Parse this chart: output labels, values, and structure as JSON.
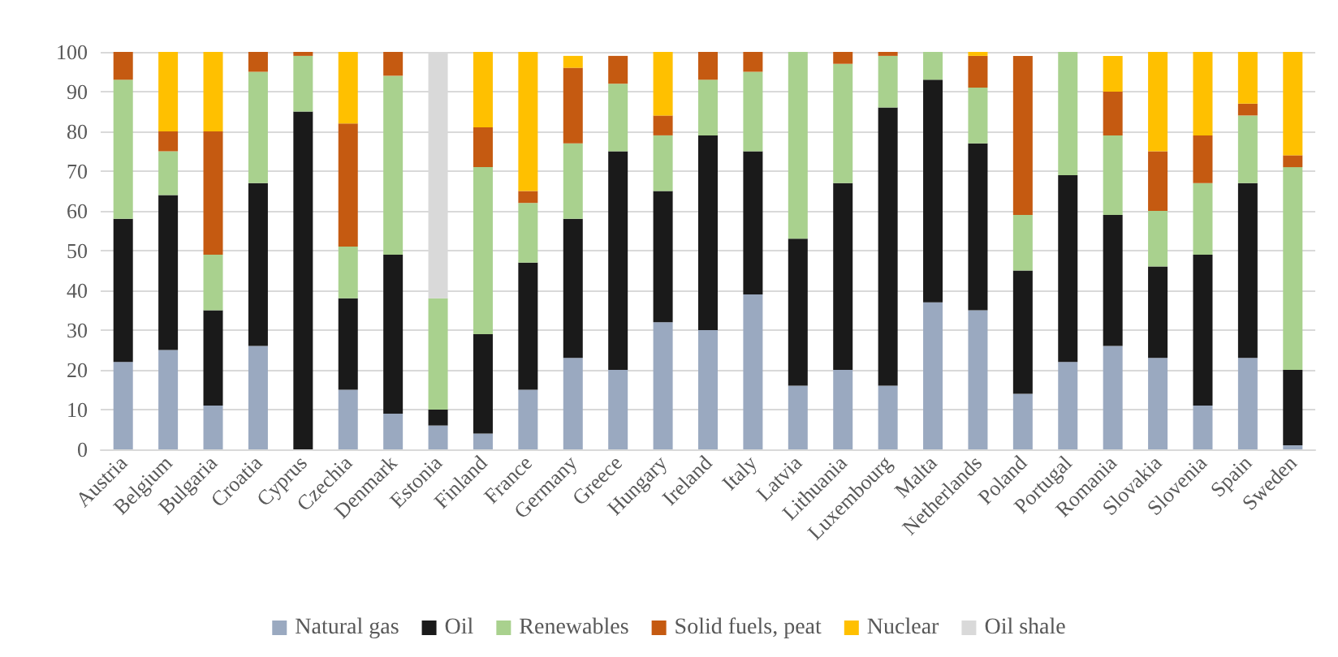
{
  "chart_data": {
    "type": "bar",
    "stacked": true,
    "categories": [
      "Austria",
      "Belgium",
      "Bulgaria",
      "Croatia",
      "Cyprus",
      "Czechia",
      "Denmark",
      "Estonia",
      "Finland",
      "France",
      "Germany",
      "Greece",
      "Hungary",
      "Ireland",
      "Italy",
      "Latvia",
      "Lithuania",
      "Luxembourg",
      "Malta",
      "Netherlands",
      "Poland",
      "Portugal",
      "Romania",
      "Slovakia",
      "Slovenia",
      "Spain",
      "Sweden"
    ],
    "series": [
      {
        "name": "Natural gas",
        "color": "#9aa9c0",
        "values": [
          22,
          25,
          11,
          26,
          0,
          15,
          9,
          6,
          4,
          15,
          23,
          20,
          32,
          30,
          39,
          16,
          20,
          16,
          37,
          35,
          14,
          22,
          26,
          23,
          11,
          23,
          1
        ]
      },
      {
        "name": "Oil",
        "color": "#1a1a1a",
        "values": [
          36,
          39,
          24,
          41,
          85,
          23,
          40,
          4,
          25,
          32,
          35,
          55,
          33,
          49,
          36,
          37,
          47,
          70,
          56,
          42,
          31,
          47,
          33,
          23,
          38,
          44,
          19
        ]
      },
      {
        "name": "Renewables",
        "color": "#a9d18e",
        "values": [
          35,
          11,
          14,
          28,
          14,
          13,
          45,
          28,
          42,
          15,
          19,
          17,
          14,
          14,
          20,
          47,
          30,
          13,
          7,
          14,
          14,
          31,
          20,
          14,
          18,
          17,
          51
        ]
      },
      {
        "name": "Solid fuels, peat",
        "color": "#c55a11",
        "values": [
          7,
          5,
          31,
          5,
          1,
          31,
          6,
          0,
          10,
          3,
          19,
          7,
          5,
          7,
          5,
          0,
          3,
          1,
          0,
          8,
          40,
          0,
          11,
          15,
          12,
          3,
          3
        ]
      },
      {
        "name": "Nuclear",
        "color": "#ffc000",
        "values": [
          0,
          20,
          20,
          0,
          0,
          18,
          0,
          0,
          19,
          35,
          3,
          0,
          16,
          0,
          0,
          0,
          0,
          0,
          0,
          1,
          0,
          0,
          9,
          25,
          21,
          13,
          26
        ]
      },
      {
        "name": "Oil shale",
        "color": "#d9d9d9",
        "values": [
          0,
          0,
          0,
          0,
          0,
          0,
          0,
          62,
          0,
          0,
          0,
          0,
          0,
          0,
          0,
          0,
          0,
          0,
          0,
          0,
          0,
          0,
          0,
          0,
          0,
          0,
          0
        ]
      }
    ],
    "ylim": [
      0,
      100
    ],
    "yticks": [
      0,
      10,
      20,
      30,
      40,
      50,
      60,
      70,
      80,
      90,
      100
    ],
    "grid": "y",
    "legend": "bottom"
  }
}
